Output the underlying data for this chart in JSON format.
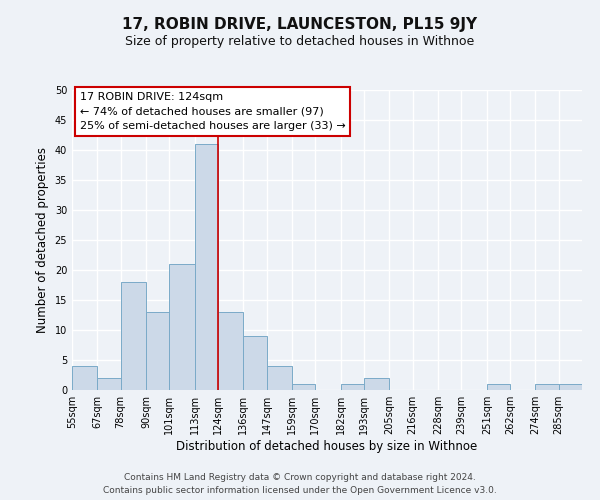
{
  "title": "17, ROBIN DRIVE, LAUNCESTON, PL15 9JY",
  "subtitle": "Size of property relative to detached houses in Withnoe",
  "xlabel": "Distribution of detached houses by size in Withnoe",
  "ylabel": "Number of detached properties",
  "footer_line1": "Contains HM Land Registry data © Crown copyright and database right 2024.",
  "footer_line2": "Contains public sector information licensed under the Open Government Licence v3.0.",
  "bin_labels": [
    "55sqm",
    "67sqm",
    "78sqm",
    "90sqm",
    "101sqm",
    "113sqm",
    "124sqm",
    "136sqm",
    "147sqm",
    "159sqm",
    "170sqm",
    "182sqm",
    "193sqm",
    "205sqm",
    "216sqm",
    "228sqm",
    "239sqm",
    "251sqm",
    "262sqm",
    "274sqm",
    "285sqm"
  ],
  "bin_edges": [
    55,
    67,
    78,
    90,
    101,
    113,
    124,
    136,
    147,
    159,
    170,
    182,
    193,
    205,
    216,
    228,
    239,
    251,
    262,
    274,
    285,
    296
  ],
  "counts": [
    4,
    2,
    18,
    13,
    21,
    41,
    13,
    9,
    4,
    1,
    0,
    1,
    2,
    0,
    0,
    0,
    0,
    1,
    0,
    1,
    1
  ],
  "property_value": 124,
  "property_label": "17 ROBIN DRIVE: 124sqm",
  "annotation_line1": "← 74% of detached houses are smaller (97)",
  "annotation_line2": "25% of semi-detached houses are larger (33) →",
  "bar_color": "#ccd9e8",
  "bar_edge_color": "#7aaac8",
  "vline_color": "#cc0000",
  "annotation_box_edge_color": "#cc0000",
  "ylim": [
    0,
    50
  ],
  "yticks": [
    0,
    5,
    10,
    15,
    20,
    25,
    30,
    35,
    40,
    45,
    50
  ],
  "background_color": "#eef2f7",
  "grid_color": "#ffffff",
  "title_fontsize": 11,
  "subtitle_fontsize": 9,
  "axis_label_fontsize": 8.5,
  "tick_fontsize": 7,
  "annotation_fontsize": 8,
  "footer_fontsize": 6.5
}
